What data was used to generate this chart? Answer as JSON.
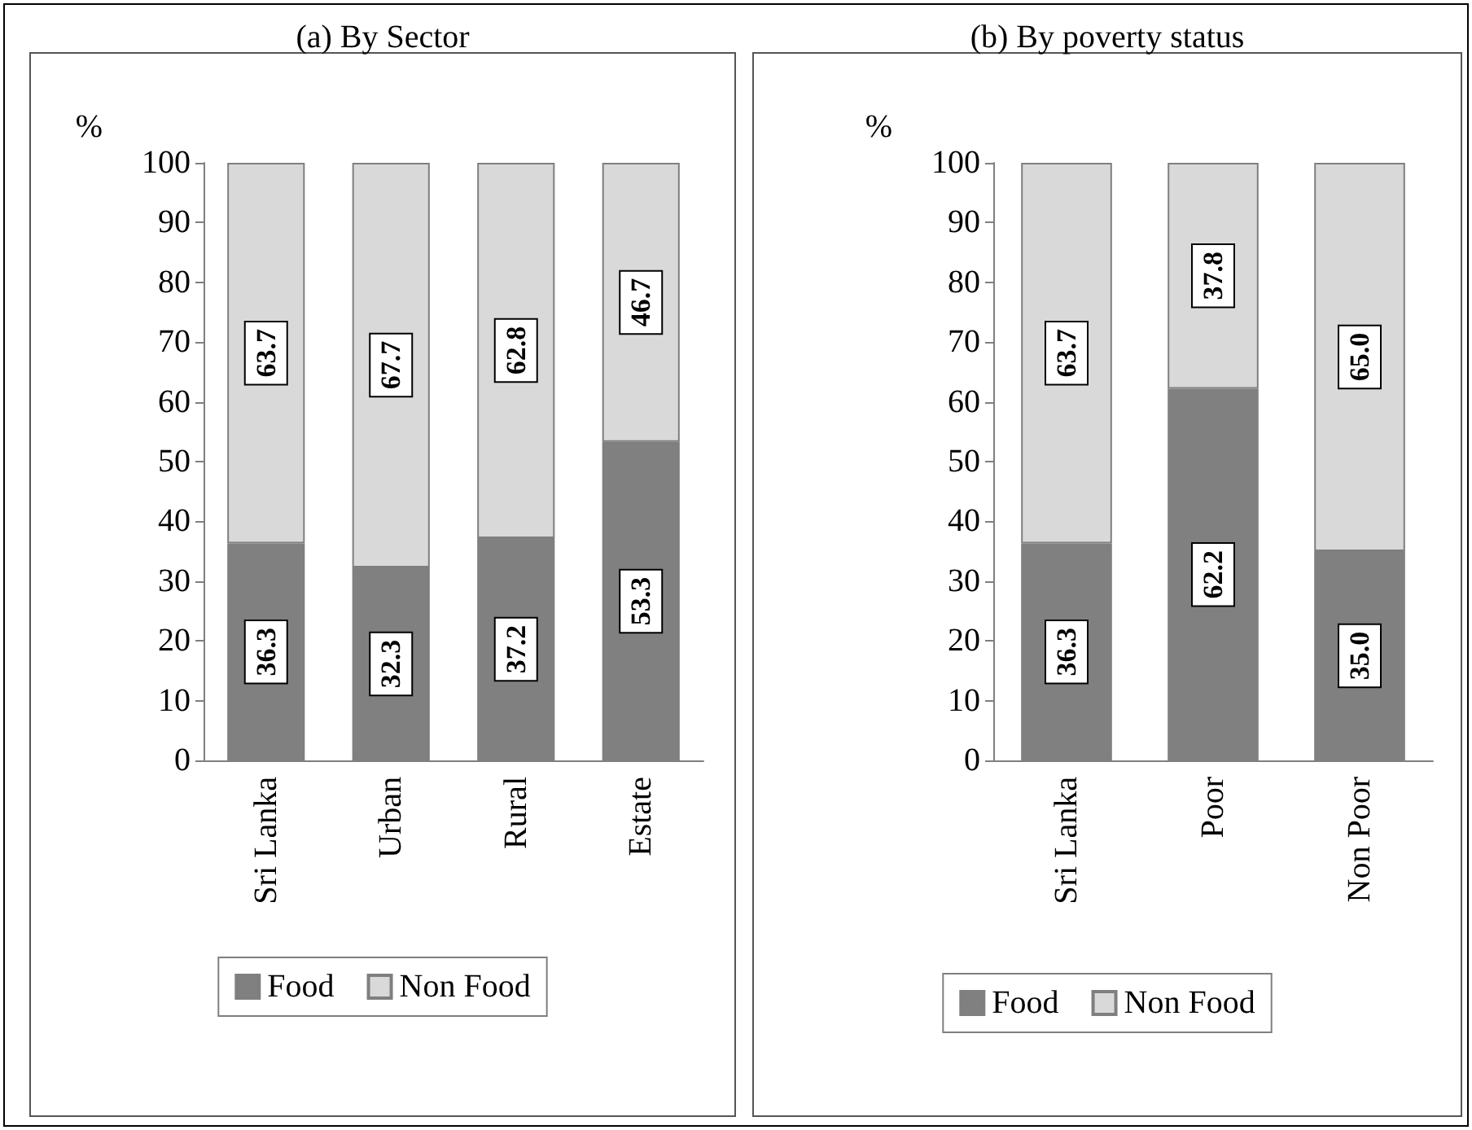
{
  "chart_data": [
    {
      "type": "bar",
      "title": "(a) By Sector",
      "ylabel": "%",
      "categories": [
        "Sri Lanka",
        "Urban",
        "Rural",
        "Estate"
      ],
      "stacked": true,
      "series": [
        {
          "name": "Food",
          "color": "#808080",
          "values": [
            36.3,
            32.3,
            37.2,
            53.3
          ],
          "value_labels": [
            "36.3",
            "32.3",
            "37.2",
            "53.3"
          ]
        },
        {
          "name": "Non Food",
          "color": "#d9d9d9",
          "values": [
            63.7,
            67.7,
            62.8,
            46.7
          ],
          "value_labels": [
            "63.7",
            "67.7",
            "62.8",
            "46.7"
          ]
        }
      ],
      "ylim": [
        0,
        100
      ],
      "yticks": [
        0,
        10,
        20,
        30,
        40,
        50,
        60,
        70,
        80,
        90,
        100
      ],
      "grid": false,
      "legend": "bottom"
    },
    {
      "type": "bar",
      "title": "(b) By poverty status",
      "ylabel": "%",
      "categories": [
        "Sri Lanka",
        "Poor",
        "Non Poor"
      ],
      "stacked": true,
      "series": [
        {
          "name": "Food",
          "color": "#808080",
          "values": [
            36.3,
            62.2,
            35.0
          ],
          "value_labels": [
            "36.3",
            "62.2",
            "35.0"
          ]
        },
        {
          "name": "Non Food",
          "color": "#d9d9d9",
          "values": [
            63.7,
            37.8,
            65.0
          ],
          "value_labels": [
            "63.7",
            "37.8",
            "65.0"
          ]
        }
      ],
      "ylim": [
        0,
        100
      ],
      "yticks": [
        0,
        10,
        20,
        30,
        40,
        50,
        60,
        70,
        80,
        90,
        100
      ],
      "grid": false,
      "legend": "bottom"
    }
  ]
}
